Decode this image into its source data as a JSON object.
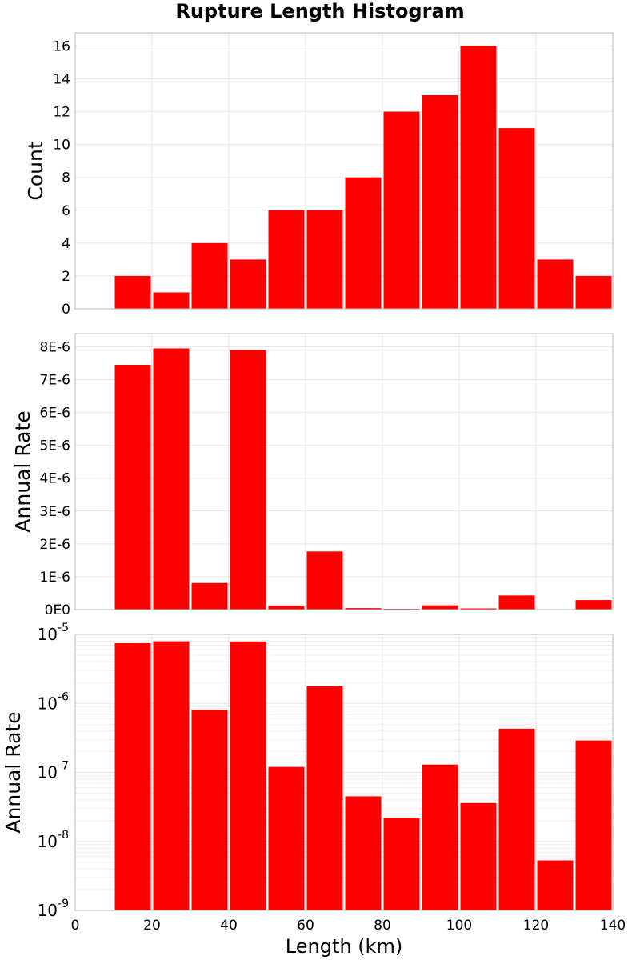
{
  "chart_data": {
    "type": "bar",
    "title": "Rupture Length Histogram",
    "xlabel": "Length (km)",
    "xlim": [
      0,
      140
    ],
    "x_ticks": [
      0,
      20,
      40,
      60,
      80,
      100,
      120,
      140
    ],
    "bin_width": 10,
    "bin_centers": [
      15,
      25,
      35,
      45,
      55,
      65,
      75,
      85,
      95,
      105,
      115,
      125,
      135
    ],
    "bar_color": "#ff0000",
    "grid": true,
    "panels": [
      {
        "ylabel": "Count",
        "scale": "linear",
        "ylim": [
          0,
          16.8
        ],
        "y_ticks": [
          0,
          2,
          4,
          6,
          8,
          10,
          12,
          14,
          16
        ],
        "y_tick_labels": [
          "0",
          "2",
          "4",
          "6",
          "8",
          "10",
          "12",
          "14",
          "16"
        ],
        "values": [
          2,
          1,
          4,
          3,
          6,
          6,
          8,
          12,
          13,
          16,
          11,
          3,
          2
        ]
      },
      {
        "ylabel": "Annual Rate",
        "scale": "linear",
        "ylim": [
          0,
          8.4e-06
        ],
        "y_ticks": [
          0,
          1e-06,
          2e-06,
          3e-06,
          4e-06,
          5e-06,
          6e-06,
          7e-06,
          8e-06
        ],
        "y_tick_labels": [
          "0E0",
          "1E-6",
          "2E-6",
          "3E-6",
          "4E-6",
          "5E-6",
          "6E-6",
          "7E-6",
          "8E-6"
        ],
        "values": [
          7.45e-06,
          7.95e-06,
          8.1e-07,
          7.9e-06,
          1.2e-07,
          1.77e-06,
          4.5e-08,
          2.2e-08,
          1.3e-07,
          3.6e-08,
          4.3e-07,
          5.3e-09,
          2.9e-07
        ]
      },
      {
        "ylabel": "Annual Rate",
        "scale": "log",
        "ylim": [
          1e-09,
          1e-05
        ],
        "y_ticks": [
          1e-09,
          1e-08,
          1e-07,
          1e-06,
          1e-05
        ],
        "y_tick_bases": [
          "10",
          "10",
          "10",
          "10",
          "10"
        ],
        "y_tick_exponents": [
          "-9",
          "-8",
          "-7",
          "-6",
          "-5"
        ],
        "values": [
          7.45e-06,
          7.95e-06,
          8.1e-07,
          7.9e-06,
          1.2e-07,
          1.77e-06,
          4.5e-08,
          2.2e-08,
          1.3e-07,
          3.6e-08,
          4.3e-07,
          5.3e-09,
          2.9e-07
        ]
      }
    ]
  }
}
